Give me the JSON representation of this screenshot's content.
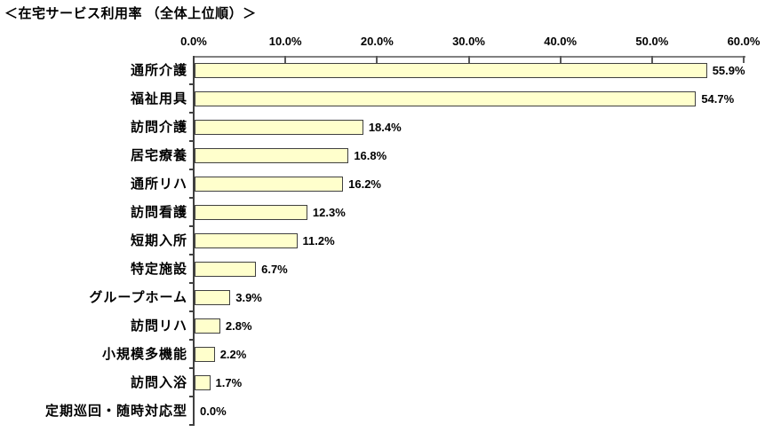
{
  "title": "＜在宅サービス利用率 （全体上位順）＞",
  "chart_data": {
    "type": "bar",
    "orientation": "horizontal",
    "title": "＜在宅サービス利用率 （全体上位順）＞",
    "categories": [
      "通所介護",
      "福祉用具",
      "訪問介護",
      "居宅療養",
      "通所リハ",
      "訪問看護",
      "短期入所",
      "特定施設",
      "グループホーム",
      "訪問リハ",
      "小規模多機能",
      "訪問入浴",
      "定期巡回・随時対応型"
    ],
    "values": [
      55.9,
      54.7,
      18.4,
      16.8,
      16.2,
      12.3,
      11.2,
      6.7,
      3.9,
      2.8,
      2.2,
      1.7,
      0.0
    ],
    "value_labels": [
      "55.9%",
      "54.7%",
      "18.4%",
      "16.8%",
      "16.2%",
      "12.3%",
      "11.2%",
      "6.7%",
      "3.9%",
      "2.8%",
      "2.2%",
      "1.7%",
      "0.0%"
    ],
    "xlim": [
      0,
      60
    ],
    "x_tick_values": [
      0,
      10,
      20,
      30,
      40,
      50,
      60
    ],
    "x_tick_labels": [
      "0.0%",
      "10.0%",
      "20.0%",
      "30.0%",
      "40.0%",
      "50.0%",
      "60.0%"
    ],
    "grid": false,
    "legend_position": "none",
    "colors": {
      "bar_fill": "#FFFFCC",
      "bar_border": "#404040",
      "value_axis_line": "#808080",
      "category_axis_line": "#404040",
      "text": "#000000",
      "background": "#FFFFFF"
    }
  }
}
